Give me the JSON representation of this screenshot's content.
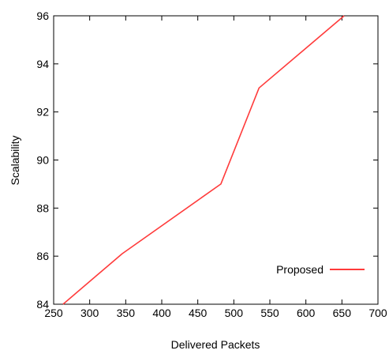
{
  "chart_data": {
    "type": "line",
    "xlabel": "Delivered Packets",
    "ylabel": "Scalability",
    "xlim": [
      250,
      700
    ],
    "ylim": [
      84,
      96
    ],
    "x_ticks": [
      250,
      300,
      350,
      400,
      450,
      500,
      550,
      600,
      650,
      700
    ],
    "y_ticks": [
      84,
      86,
      88,
      90,
      92,
      94,
      96
    ],
    "grid": false,
    "legend_position": "bottom-right",
    "series": [
      {
        "name": "Proposed",
        "color": "#ff3b3b",
        "x": [
          263,
          345,
          482,
          535,
          653
        ],
        "y": [
          84.0,
          86.1,
          89.0,
          93.0,
          96.0
        ]
      }
    ]
  }
}
